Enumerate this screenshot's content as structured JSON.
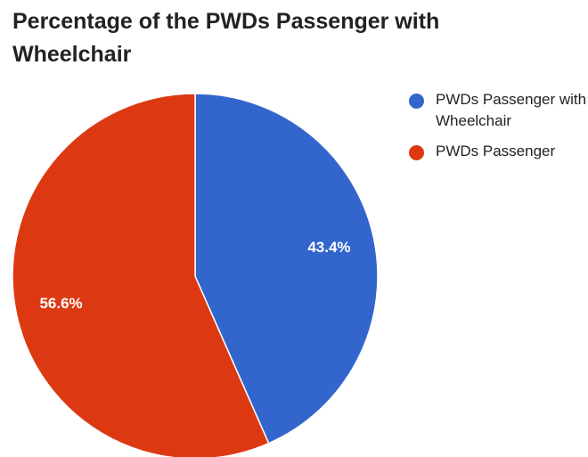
{
  "chart_data": {
    "type": "pie",
    "title": "Percentage of the PWDs Passenger with Wheelchair",
    "slices": [
      {
        "name": "PWDs Passenger with Wheelchair",
        "value": 43.4,
        "label": "43.4%",
        "color": "#3366cc"
      },
      {
        "name": "PWDs Passenger",
        "value": 56.6,
        "label": "56.6%",
        "color": "#dc3912"
      }
    ],
    "legend_position": "right",
    "start_angle": "top, clockwise"
  }
}
